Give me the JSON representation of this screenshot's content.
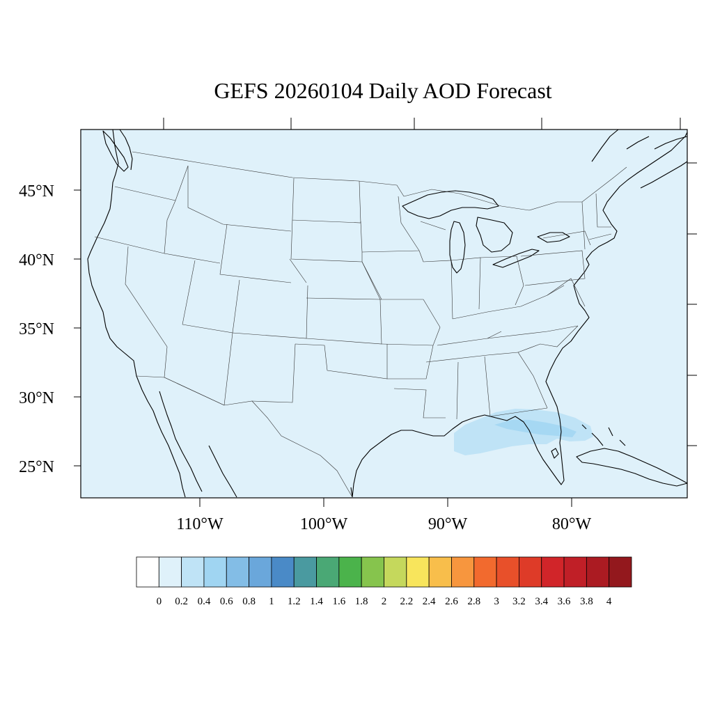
{
  "title": "GEFS 20260104 Daily AOD Forecast",
  "map": {
    "ocean_color": "#dff1fa",
    "latitude_labels": [
      "45°N",
      "40°N",
      "35°N",
      "30°N",
      "25°N"
    ],
    "longitude_labels": [
      "110°W",
      "100°W",
      "90°W",
      "80°W"
    ],
    "plume_colors": [
      "#bfe3f6",
      "#a6d8f3"
    ]
  },
  "colorbar": {
    "colors": [
      "#ffffff",
      "#dff1fa",
      "#bfe3f6",
      "#a0d5f2",
      "#83bde6",
      "#6aa7db",
      "#4a8ac7",
      "#4a9aa0",
      "#4aa875",
      "#4bb34b",
      "#86c44d",
      "#c5d85c",
      "#f8e55c",
      "#f8be4b",
      "#f7963e",
      "#f26a2e",
      "#e8502a",
      "#de3b28",
      "#d12529",
      "#c01f27",
      "#ab1b22",
      "#93181d"
    ],
    "labels": [
      "0",
      "0.2",
      "0.4",
      "0.6",
      "0.8",
      "1",
      "1.2",
      "1.4",
      "1.6",
      "1.8",
      "2",
      "2.2",
      "2.4",
      "2.6",
      "2.8",
      "3",
      "3.2",
      "3.4",
      "3.6",
      "3.8",
      "4"
    ]
  }
}
